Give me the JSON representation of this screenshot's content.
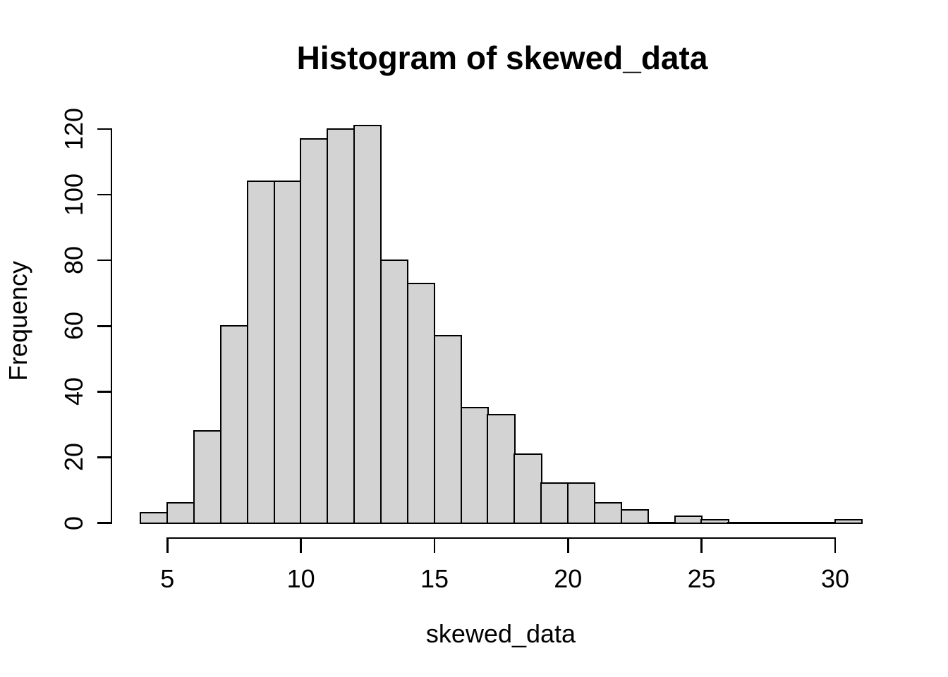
{
  "chart_data": {
    "type": "bar",
    "subtype": "histogram",
    "title": "Histogram of skewed_data",
    "xlabel": "skewed_data",
    "ylabel": "Frequency",
    "x_ticks": [
      5,
      10,
      15,
      20,
      25,
      30
    ],
    "y_ticks": [
      0,
      20,
      40,
      60,
      80,
      100,
      120
    ],
    "xlim": [
      4,
      31
    ],
    "ylim": [
      0,
      121
    ],
    "grid": false,
    "bar_fill": "#D3D3D3",
    "bar_border": "#000000",
    "axis_color": "#000000",
    "text_color": "#000000",
    "background": "#FFFFFF",
    "bins": [
      {
        "range": [
          4,
          5
        ],
        "count": 3
      },
      {
        "range": [
          5,
          6
        ],
        "count": 6
      },
      {
        "range": [
          6,
          7
        ],
        "count": 28
      },
      {
        "range": [
          7,
          8
        ],
        "count": 60
      },
      {
        "range": [
          8,
          9
        ],
        "count": 104
      },
      {
        "range": [
          9,
          10
        ],
        "count": 104
      },
      {
        "range": [
          10,
          11
        ],
        "count": 117
      },
      {
        "range": [
          11,
          12
        ],
        "count": 120
      },
      {
        "range": [
          12,
          13
        ],
        "count": 121
      },
      {
        "range": [
          13,
          14
        ],
        "count": 80
      },
      {
        "range": [
          14,
          15
        ],
        "count": 73
      },
      {
        "range": [
          15,
          16
        ],
        "count": 57
      },
      {
        "range": [
          16,
          17
        ],
        "count": 35
      },
      {
        "range": [
          17,
          18
        ],
        "count": 33
      },
      {
        "range": [
          18,
          19
        ],
        "count": 21
      },
      {
        "range": [
          19,
          20
        ],
        "count": 12
      },
      {
        "range": [
          20,
          21
        ],
        "count": 12
      },
      {
        "range": [
          21,
          22
        ],
        "count": 6
      },
      {
        "range": [
          22,
          23
        ],
        "count": 4
      },
      {
        "range": [
          23,
          24
        ],
        "count": 0
      },
      {
        "range": [
          24,
          25
        ],
        "count": 2
      },
      {
        "range": [
          25,
          26
        ],
        "count": 1
      },
      {
        "range": [
          26,
          27
        ],
        "count": 0
      },
      {
        "range": [
          27,
          28
        ],
        "count": 0
      },
      {
        "range": [
          28,
          29
        ],
        "count": 0
      },
      {
        "range": [
          29,
          30
        ],
        "count": 0
      },
      {
        "range": [
          30,
          31
        ],
        "count": 1
      }
    ]
  }
}
